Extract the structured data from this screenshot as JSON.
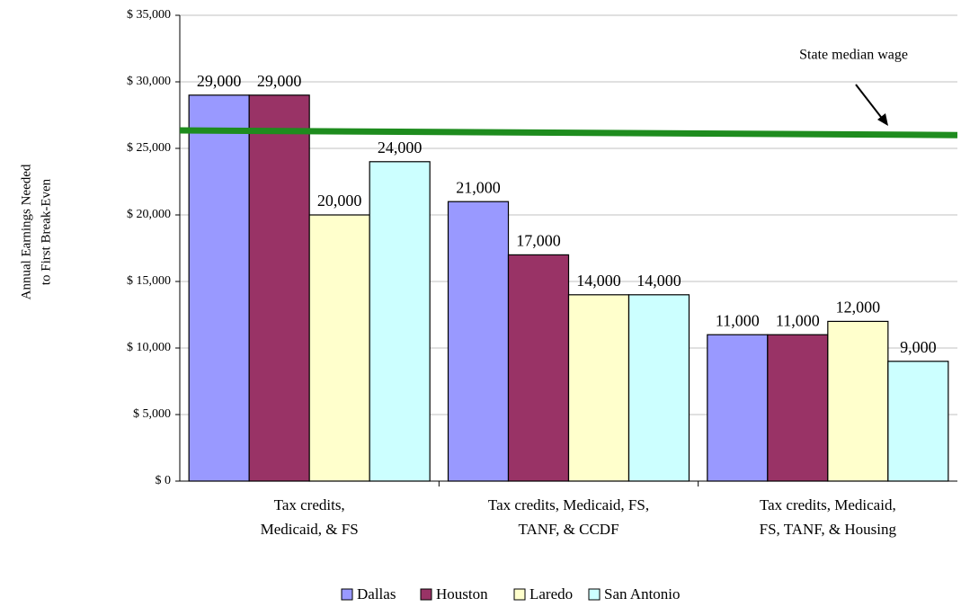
{
  "chart_data": {
    "type": "bar",
    "y_label": [
      "Annual Earnings Needed",
      "to First Break-Even"
    ],
    "categories": [
      [
        "Tax credits,",
        "Medicaid, & FS"
      ],
      [
        "Tax credits, Medicaid, FS,",
        "TANF, & CCDF"
      ],
      [
        "Tax credits, Medicaid,",
        "FS, TANF, & Housing"
      ]
    ],
    "series": [
      {
        "name": "Dallas",
        "color": "#9999ff",
        "values": [
          29000,
          21000,
          11000
        ],
        "value_labels": [
          "29,000",
          "21,000",
          "11,000"
        ]
      },
      {
        "name": "Houston",
        "color": "#993366",
        "values": [
          29000,
          17000,
          11000
        ],
        "value_labels": [
          "29,000",
          "17,000",
          "11,000"
        ]
      },
      {
        "name": "Laredo",
        "color": "#ffffcc",
        "values": [
          20000,
          14000,
          12000
        ],
        "value_labels": [
          "20,000",
          "14,000",
          "12,000"
        ]
      },
      {
        "name": "San Antonio",
        "color": "#ccffff",
        "values": [
          24000,
          14000,
          9000
        ],
        "value_labels": [
          "24,000",
          "14,000",
          "9,000"
        ]
      }
    ],
    "reference_line": {
      "label": "State median wage",
      "values": [
        26350,
        26000
      ],
      "color": "#1e8c1e"
    },
    "ylim": [
      0,
      35000
    ],
    "yticks": [
      {
        "value": 0,
        "label": "$ 0"
      },
      {
        "value": 5000,
        "label": "$ 5,000"
      },
      {
        "value": 10000,
        "label": "$ 10,000"
      },
      {
        "value": 15000,
        "label": "$ 15,000"
      },
      {
        "value": 20000,
        "label": "$ 20,000"
      },
      {
        "value": 25000,
        "label": "$ 25,000"
      },
      {
        "value": 30000,
        "label": "$ 30,000"
      },
      {
        "value": 35000,
        "label": "$ 35,000"
      }
    ],
    "grid": true,
    "legend": "bottom"
  }
}
